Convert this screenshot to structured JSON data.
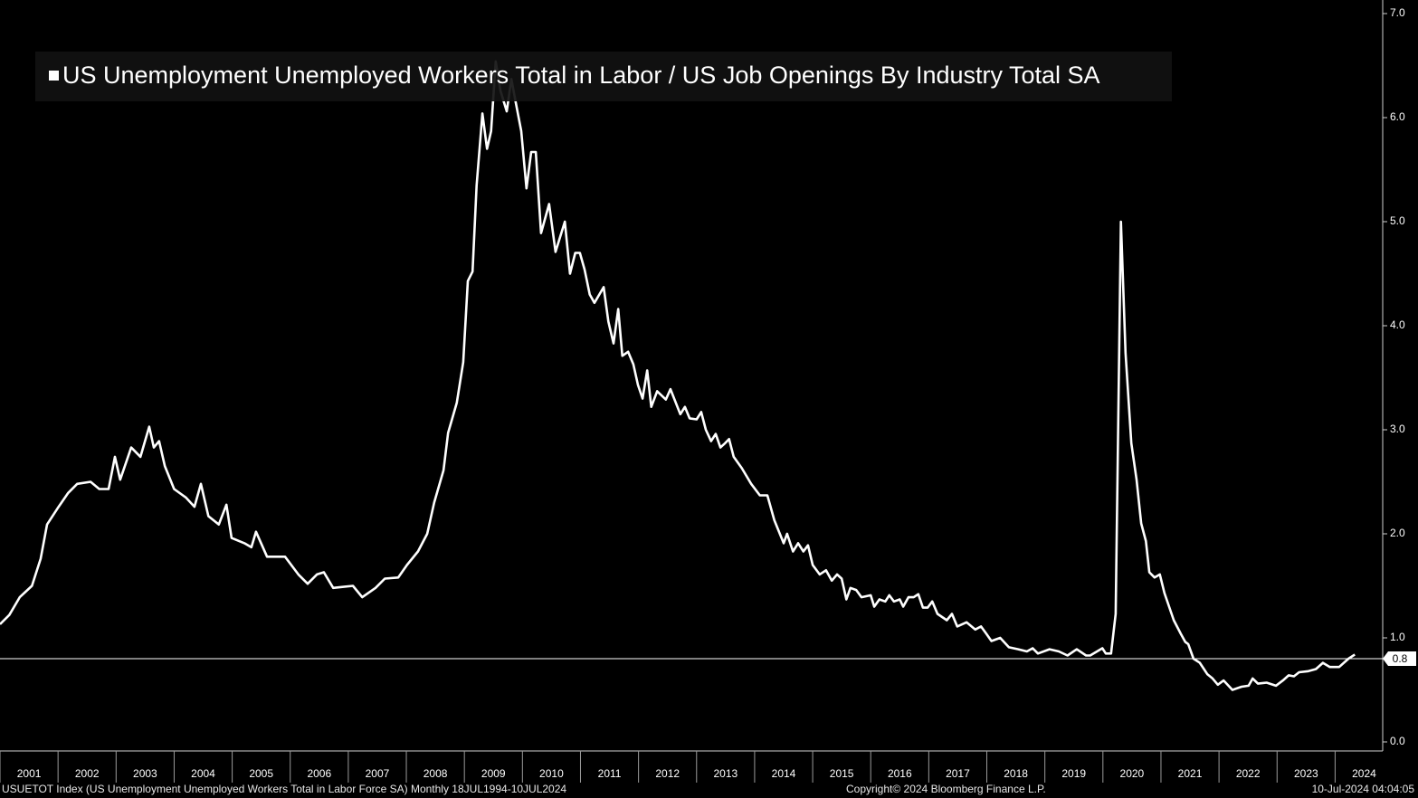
{
  "chart_data": {
    "type": "line",
    "series": [
      {
        "name": "US Unemployment Unemployed Workers Total in Labor / US Job Openings By Industry Total SA",
        "color": "#ffffff",
        "x": [
          2001.0,
          2001.16,
          2001.34,
          2001.55,
          2001.7,
          2001.81,
          2002.01,
          2002.17,
          2002.33,
          2002.56,
          2002.71,
          2002.87,
          2002.98,
          2003.07,
          2003.26,
          2003.42,
          2003.57,
          2003.65,
          2003.74,
          2003.84,
          2004.0,
          2004.2,
          2004.35,
          2004.46,
          2004.59,
          2004.77,
          2004.9,
          2004.99,
          2005.21,
          2005.33,
          2005.41,
          2005.6,
          2005.91,
          2006.14,
          2006.3,
          2006.46,
          2006.58,
          2006.74,
          2007.08,
          2007.24,
          2007.47,
          2007.63,
          2007.86,
          2008.01,
          2008.2,
          2008.36,
          2008.48,
          2008.64,
          2008.72,
          2008.87,
          2008.98,
          2009.06,
          2009.14,
          2009.21,
          2009.31,
          2009.39,
          2009.46,
          2009.54,
          2009.62,
          2009.73,
          2009.81,
          2009.89,
          2009.98,
          2010.07,
          2010.15,
          2010.23,
          2010.32,
          2010.46,
          2010.57,
          2010.73,
          2010.82,
          2010.91,
          2010.99,
          2011.07,
          2011.16,
          2011.24,
          2011.4,
          2011.48,
          2011.57,
          2011.65,
          2011.72,
          2011.82,
          2011.91,
          2011.99,
          2012.07,
          2012.15,
          2012.22,
          2012.32,
          2012.47,
          2012.55,
          2012.72,
          2012.8,
          2012.88,
          2013.0,
          2013.08,
          2013.16,
          2013.25,
          2013.33,
          2013.41,
          2013.49,
          2013.56,
          2013.64,
          2013.78,
          2013.94,
          2014.09,
          2014.22,
          2014.34,
          2014.5,
          2014.56,
          2014.66,
          2014.75,
          2014.84,
          2014.92,
          2015.0,
          2015.12,
          2015.23,
          2015.33,
          2015.42,
          2015.5,
          2015.58,
          2015.65,
          2015.75,
          2015.84,
          2016.0,
          2016.06,
          2016.15,
          2016.25,
          2016.32,
          2016.4,
          2016.5,
          2016.56,
          2016.65,
          2016.74,
          2016.82,
          2016.9,
          2016.98,
          2017.06,
          2017.15,
          2017.31,
          2017.4,
          2017.49,
          2017.65,
          2017.8,
          2017.9,
          2017.99,
          2018.08,
          2018.23,
          2018.38,
          2018.54,
          2018.69,
          2018.79,
          2018.88,
          2019.08,
          2019.24,
          2019.39,
          2019.55,
          2019.71,
          2019.78,
          2019.99,
          2020.05,
          2020.14,
          2020.22,
          2020.31,
          2020.39,
          2020.49,
          2020.58,
          2020.66,
          2020.74,
          2020.8,
          2020.89,
          2020.98,
          2021.06,
          2021.22,
          2021.34,
          2021.42,
          2021.47,
          2021.56,
          2021.67,
          2021.8,
          2021.89,
          2021.98,
          2022.08,
          2022.23,
          2022.39,
          2022.51,
          2022.58,
          2022.67,
          2022.82,
          2022.98,
          2023.1,
          2023.2,
          2023.29,
          2023.38,
          2023.54,
          2023.67,
          2023.79,
          2023.91,
          2024.07,
          2024.23,
          2024.34
        ],
        "values": [
          1.13,
          1.22,
          1.39,
          1.5,
          1.76,
          2.09,
          2.26,
          2.39,
          2.48,
          2.5,
          2.43,
          2.43,
          2.74,
          2.52,
          2.83,
          2.74,
          3.03,
          2.83,
          2.89,
          2.65,
          2.43,
          2.35,
          2.26,
          2.48,
          2.17,
          2.09,
          2.28,
          1.96,
          1.91,
          1.87,
          2.02,
          1.78,
          1.78,
          1.61,
          1.52,
          1.61,
          1.63,
          1.48,
          1.5,
          1.39,
          1.48,
          1.57,
          1.58,
          1.7,
          1.83,
          2.0,
          2.3,
          2.61,
          2.97,
          3.26,
          3.65,
          4.43,
          4.52,
          5.35,
          6.04,
          5.7,
          5.87,
          6.54,
          6.26,
          6.06,
          6.37,
          6.13,
          5.87,
          5.32,
          5.67,
          5.67,
          4.89,
          5.17,
          4.71,
          5.0,
          4.5,
          4.7,
          4.7,
          4.54,
          4.3,
          4.22,
          4.37,
          4.04,
          3.83,
          4.16,
          3.71,
          3.75,
          3.63,
          3.43,
          3.3,
          3.57,
          3.22,
          3.37,
          3.29,
          3.39,
          3.15,
          3.22,
          3.11,
          3.1,
          3.17,
          3.0,
          2.89,
          2.96,
          2.83,
          2.87,
          2.91,
          2.74,
          2.63,
          2.48,
          2.37,
          2.37,
          2.13,
          1.91,
          2.0,
          1.83,
          1.91,
          1.83,
          1.89,
          1.7,
          1.61,
          1.65,
          1.55,
          1.61,
          1.57,
          1.37,
          1.48,
          1.46,
          1.39,
          1.41,
          1.3,
          1.37,
          1.35,
          1.41,
          1.35,
          1.37,
          1.3,
          1.39,
          1.39,
          1.42,
          1.29,
          1.29,
          1.35,
          1.23,
          1.17,
          1.23,
          1.11,
          1.15,
          1.08,
          1.11,
          1.04,
          0.97,
          1.0,
          0.91,
          0.89,
          0.87,
          0.9,
          0.85,
          0.89,
          0.87,
          0.83,
          0.89,
          0.83,
          0.83,
          0.9,
          0.85,
          0.85,
          1.23,
          5.0,
          3.74,
          2.87,
          2.52,
          2.1,
          1.93,
          1.63,
          1.58,
          1.61,
          1.43,
          1.17,
          1.04,
          0.96,
          0.94,
          0.8,
          0.76,
          0.65,
          0.61,
          0.55,
          0.59,
          0.5,
          0.53,
          0.54,
          0.61,
          0.56,
          0.57,
          0.54,
          0.59,
          0.64,
          0.63,
          0.67,
          0.68,
          0.7,
          0.76,
          0.72,
          0.72,
          0.8,
          0.84
        ]
      }
    ],
    "last_value": 0.8,
    "xlim": [
      2001,
      2024.82
    ],
    "xticks": [
      {
        "value": 2001,
        "label": "2001"
      },
      {
        "value": 2002,
        "label": "2002"
      },
      {
        "value": 2003,
        "label": "2003"
      },
      {
        "value": 2004,
        "label": "2004"
      },
      {
        "value": 2005,
        "label": "2005"
      },
      {
        "value": 2006,
        "label": "2006"
      },
      {
        "value": 2007,
        "label": "2007"
      },
      {
        "value": 2008,
        "label": "2008"
      },
      {
        "value": 2009,
        "label": "2009"
      },
      {
        "value": 2010,
        "label": "2010"
      },
      {
        "value": 2011,
        "label": "2011"
      },
      {
        "value": 2012,
        "label": "2012"
      },
      {
        "value": 2013,
        "label": "2013"
      },
      {
        "value": 2014,
        "label": "2014"
      },
      {
        "value": 2015,
        "label": "2015"
      },
      {
        "value": 2016,
        "label": "2016"
      },
      {
        "value": 2017,
        "label": "2017"
      },
      {
        "value": 2018,
        "label": "2018"
      },
      {
        "value": 2019,
        "label": "2019"
      },
      {
        "value": 2020,
        "label": "2020"
      },
      {
        "value": 2021,
        "label": "2021"
      },
      {
        "value": 2022,
        "label": "2022"
      },
      {
        "value": 2023,
        "label": "2023"
      },
      {
        "value": 2024,
        "label": "2024"
      }
    ],
    "ylim": [
      0,
      7
    ],
    "yticks": [
      {
        "value": 0,
        "label": "0.0"
      },
      {
        "value": 1,
        "label": "1.0"
      },
      {
        "value": 2,
        "label": "2.0"
      },
      {
        "value": 3,
        "label": "3.0"
      },
      {
        "value": 4,
        "label": "4.0"
      },
      {
        "value": 5,
        "label": "5.0"
      },
      {
        "value": 6,
        "label": "6.0"
      },
      {
        "value": 7,
        "label": "7.0"
      }
    ],
    "footer": {
      "source": "USUETOT Index (US Unemployment Unemployed Workers Total in Labor Force SA)  Monthly 18JUL1994-10JUL2024",
      "copyright": "Copyright© 2024 Bloomberg Finance L.P.",
      "timestamp": "10-Jul-2024 04:04:05"
    }
  }
}
